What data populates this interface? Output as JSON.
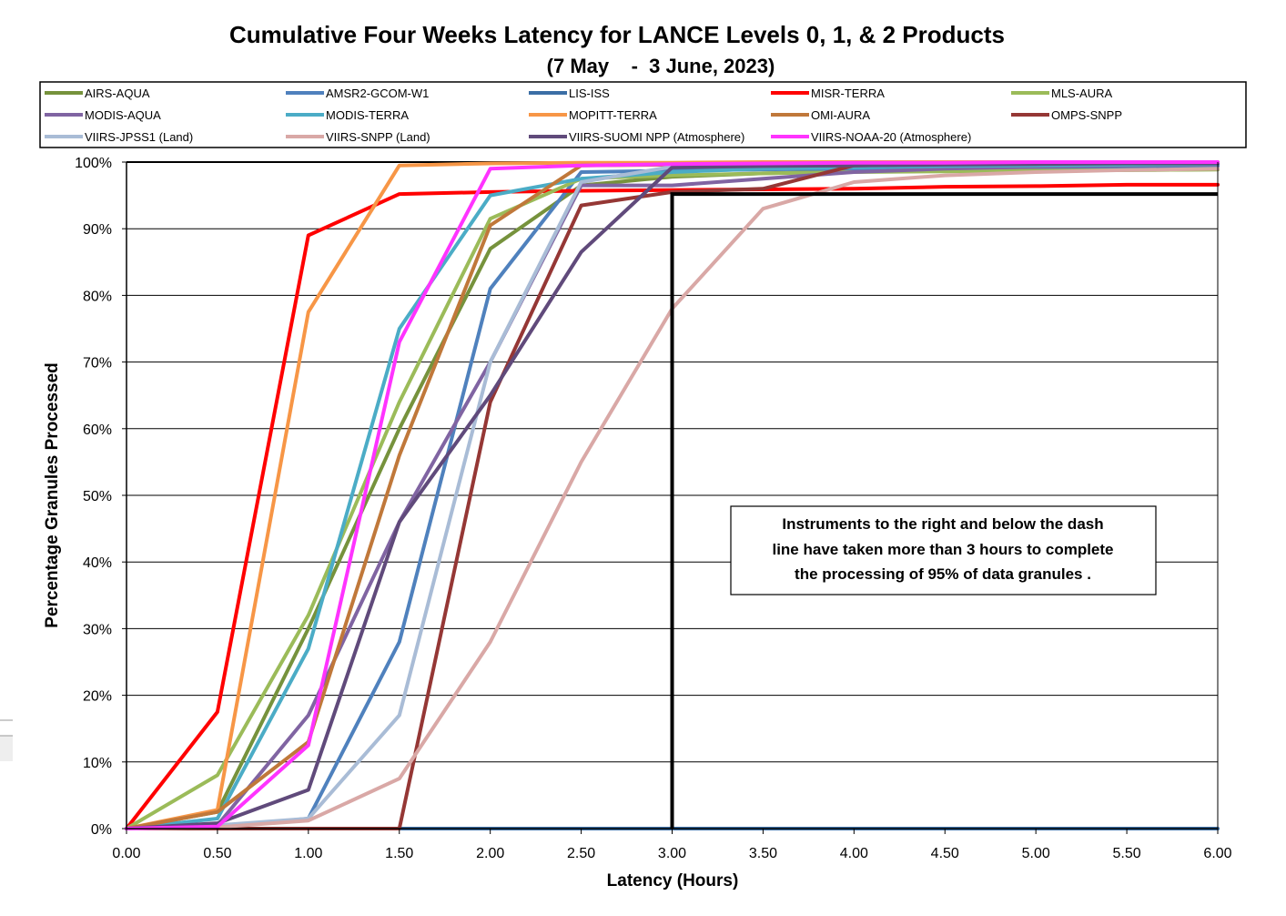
{
  "chart_data": {
    "type": "line",
    "title": "Cumulative Four Weeks Latency for LANCE Levels 0, 1, & 2 Products",
    "subtitle": "(7 May    -  3 June, 2023)",
    "xlabel": "Latency (Hours)",
    "ylabel": "Percentage Granules Processed",
    "x": [
      0,
      0.5,
      1.0,
      1.5,
      2.0,
      2.5,
      3.0,
      3.5,
      4.0,
      4.5,
      5.0,
      5.5,
      6.0
    ],
    "x_tick_labels": [
      "0.00",
      "0.50",
      "1.00",
      "1.50",
      "2.00",
      "2.50",
      "3.00",
      "3.50",
      "4.00",
      "4.50",
      "5.00",
      "5.50",
      "6.00"
    ],
    "y_tick_labels": [
      "0%",
      "10%",
      "20%",
      "30%",
      "40%",
      "50%",
      "60%",
      "70%",
      "80%",
      "90%",
      "100%"
    ],
    "xlim": [
      0,
      6
    ],
    "ylim": [
      0,
      100
    ],
    "grid": "horizontal",
    "legend_position": "top",
    "series": [
      {
        "name": "AIRS-AQUA",
        "color": "#76923c",
        "values": [
          0,
          2.5,
          30,
          60,
          87,
          96.5,
          97.8,
          98.3,
          98.6,
          98.7,
          98.8,
          98.8,
          98.9
        ]
      },
      {
        "name": "AMSR2-GCOM-W1",
        "color": "#4f81bd",
        "values": [
          0,
          0.2,
          1.5,
          28,
          81,
          98.5,
          98.7,
          98.9,
          99.0,
          99.1,
          99.2,
          99.3,
          99.4
        ]
      },
      {
        "name": "LIS-ISS",
        "color": "#3b6ea5",
        "values": [
          0,
          0,
          0,
          0,
          0,
          0,
          0,
          0,
          0,
          0,
          0,
          0,
          0
        ]
      },
      {
        "name": "MISR-TERRA",
        "color": "#ff0000",
        "values": [
          0,
          17.5,
          89,
          95.2,
          95.5,
          95.7,
          95.8,
          95.9,
          96.0,
          96.3,
          96.4,
          96.6,
          96.6
        ]
      },
      {
        "name": "MLS-AURA",
        "color": "#9bbb59",
        "values": [
          0,
          8,
          32,
          64,
          91.5,
          97.5,
          98.0,
          98.3,
          98.5,
          98.6,
          98.7,
          98.8,
          98.9
        ]
      },
      {
        "name": "MODIS-AQUA",
        "color": "#8064a2",
        "values": [
          0,
          0.5,
          17,
          46,
          70,
          96.5,
          96.5,
          97.5,
          98.5,
          99.0,
          99.3,
          99.5,
          99.6
        ]
      },
      {
        "name": "MODIS-TERRA",
        "color": "#4bacc6",
        "values": [
          0,
          1.5,
          27,
          75,
          95,
          97.5,
          98.5,
          99.0,
          99.2,
          99.4,
          99.5,
          99.6,
          99.7
        ]
      },
      {
        "name": "MOPITT-TERRA",
        "color": "#f79646",
        "values": [
          0,
          2.8,
          77.5,
          99.5,
          99.8,
          99.9,
          99.9,
          100,
          100,
          100,
          100,
          100,
          100
        ]
      },
      {
        "name": "OMI-AURA",
        "color": "#c0783a",
        "values": [
          0,
          2.5,
          13,
          56,
          90.5,
          99.5,
          99.6,
          99.7,
          99.8,
          99.8,
          99.9,
          99.9,
          99.9
        ]
      },
      {
        "name": "OMPS-SNPP",
        "color": "#953735",
        "values": [
          0,
          0,
          0,
          0,
          64,
          93.5,
          95.5,
          96,
          99.5,
          99.7,
          99.8,
          99.9,
          99.9
        ]
      },
      {
        "name": "VIIRS-JPSS1 (Land)",
        "color": "#a9bcd6",
        "values": [
          0,
          0.5,
          1.5,
          17,
          70,
          97,
          99.3,
          99.5,
          99.6,
          99.7,
          99.8,
          99.8,
          99.9
        ]
      },
      {
        "name": "VIIRS-SNPP (Land)",
        "color": "#d9a8a6",
        "values": [
          0,
          0.2,
          1.2,
          7.5,
          28,
          55,
          78,
          93,
          97,
          98,
          98.5,
          98.8,
          99.0
        ]
      },
      {
        "name": "VIIRS-SUOMI NPP (Atmosphere)",
        "color": "#604a7b",
        "values": [
          0,
          0.8,
          5.8,
          46,
          65,
          86.5,
          99.2,
          99.4,
          99.5,
          99.6,
          99.7,
          99.8,
          99.8
        ]
      },
      {
        "name": "VIIRS-NOAA-20 (Atmosphere)",
        "color": "#ff33ff",
        "values": [
          0,
          0.3,
          12.5,
          73,
          99,
          99.5,
          99.7,
          99.8,
          99.9,
          99.9,
          100,
          100,
          100
        ]
      }
    ],
    "reference_line": {
      "x": [
        3.0,
        3.0,
        6.0
      ],
      "y": [
        0,
        95.2,
        95.2
      ],
      "color": "#000000"
    },
    "annotation": [
      "Instruments to the right and below the dash",
      "line have taken more than 3 hours to complete",
      "the processing of 95% of data granules ."
    ]
  }
}
